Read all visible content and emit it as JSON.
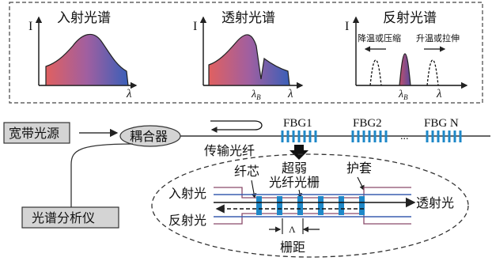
{
  "colors": {
    "fiber_blue": "#1e6fb0",
    "fbg_blue": "#1e88c8",
    "gray_box": "#d4d4d4",
    "clad_pink": "#8a4a6a",
    "curve_red": "#d9534f",
    "curve_blue": "#3a5fb0"
  },
  "spectra": {
    "incident": {
      "title": "入射光谱",
      "y_axis": "I",
      "x_axis": "λ"
    },
    "transmitted": {
      "title": "透射光谱",
      "y_axis": "I",
      "x_axis": "λ",
      "notch_label": "λB"
    },
    "reflected": {
      "title": "反射光谱",
      "y_axis": "I",
      "x_axis": "λ",
      "peak_label": "λB",
      "left_shift": "降温或压缩",
      "right_shift": "升温或拉伸"
    }
  },
  "system": {
    "source": "宽带光源",
    "coupler": "耦合器",
    "analyzer": "光谱分析仪",
    "fiber": "传输光纤",
    "fbg": [
      "FBG1",
      "FBG2",
      "FBG N"
    ],
    "dots": "..."
  },
  "detail": {
    "core": "纤芯",
    "grating_line1": "超弱",
    "grating_line2": "光纤光栅",
    "jacket": "护套",
    "incident": "入射光",
    "transmitted": "透射光",
    "reflected": "反射光",
    "lambda": "Λ",
    "pitch": "栅距"
  }
}
